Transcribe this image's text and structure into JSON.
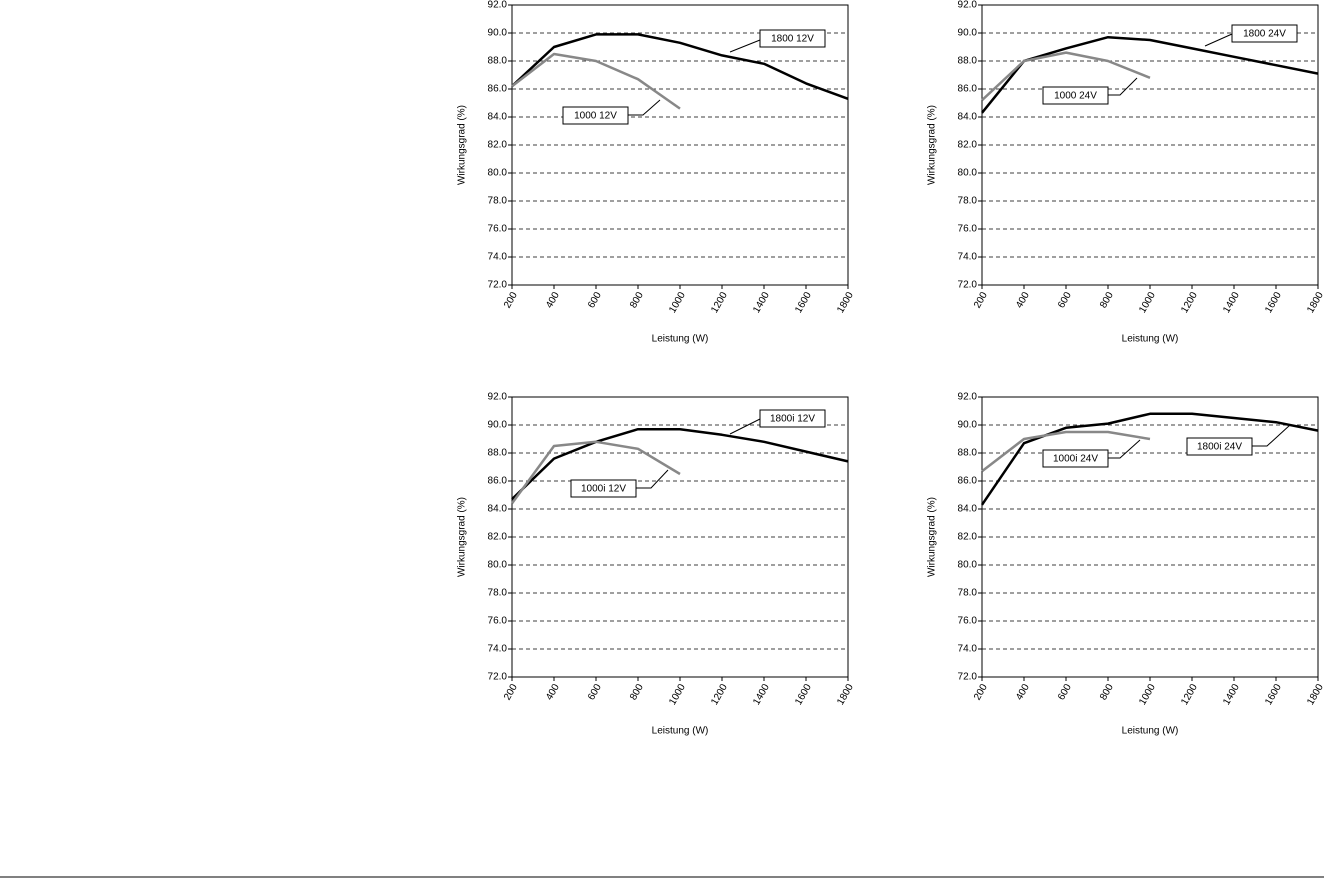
{
  "chart_data": [
    {
      "type": "line",
      "xlabel": "Leistung (W)",
      "ylabel": "Wirkungsgrad (%)",
      "xlim": [
        200,
        1800
      ],
      "ylim": [
        72,
        92
      ],
      "xticks": [
        200,
        400,
        600,
        800,
        1000,
        1200,
        1400,
        1600,
        1800
      ],
      "yticks": [
        {
          "value": 72,
          "label": "72.0"
        },
        {
          "value": 74,
          "label": "74.0"
        },
        {
          "value": 76,
          "label": "76.0"
        },
        {
          "value": 78,
          "label": "78.0"
        },
        {
          "value": 80,
          "label": "80.0"
        },
        {
          "value": 82,
          "label": "82.0"
        },
        {
          "value": 84,
          "label": "84.0"
        },
        {
          "value": 86,
          "label": "86.0"
        },
        {
          "value": 88,
          "label": "88.0"
        },
        {
          "value": 90,
          "label": "90.0"
        },
        {
          "value": 92,
          "label": "92.0"
        }
      ],
      "grid": true,
      "series": [
        {
          "name": "1800 12V",
          "color": "#000000",
          "x": [
            200,
            400,
            600,
            800,
            1000,
            1200,
            1400,
            1600,
            1800
          ],
          "values": [
            86.2,
            89.0,
            89.9,
            89.9,
            89.3,
            88.4,
            87.8,
            86.4,
            85.3
          ]
        },
        {
          "name": "1000 12V",
          "color": "#888888",
          "x": [
            200,
            400,
            600,
            800,
            1000
          ],
          "values": [
            86.2,
            88.5,
            88.0,
            86.7,
            84.6
          ]
        }
      ]
    },
    {
      "type": "line",
      "xlabel": "Leistung (W)",
      "ylabel": "Wirkungsgrad (%)",
      "xlim": [
        200,
        1800
      ],
      "ylim": [
        72,
        92
      ],
      "xticks": [
        200,
        400,
        600,
        800,
        1000,
        1200,
        1400,
        1600,
        1800
      ],
      "yticks": [
        {
          "value": 72,
          "label": "72.0"
        },
        {
          "value": 74,
          "label": "74.0"
        },
        {
          "value": 76,
          "label": "76.0"
        },
        {
          "value": 78,
          "label": "78.0"
        },
        {
          "value": 80,
          "label": "80.0"
        },
        {
          "value": 82,
          "label": "82.0"
        },
        {
          "value": 84,
          "label": "84.0"
        },
        {
          "value": 86,
          "label": "86.0"
        },
        {
          "value": 88,
          "label": "88.0"
        },
        {
          "value": 90,
          "label": "90.0"
        },
        {
          "value": 92,
          "label": "92.0"
        }
      ],
      "grid": true,
      "series": [
        {
          "name": "1800 24V",
          "color": "#000000",
          "x": [
            200,
            400,
            600,
            800,
            1000,
            1200,
            1400,
            1600,
            1800
          ],
          "values": [
            84.3,
            88.0,
            88.9,
            89.7,
            89.5,
            88.9,
            88.3,
            87.7,
            87.1
          ]
        },
        {
          "name": "1000 24V",
          "color": "#888888",
          "x": [
            200,
            400,
            600,
            800,
            1000
          ],
          "values": [
            85.2,
            88.0,
            88.6,
            88.0,
            86.8
          ]
        }
      ]
    },
    {
      "type": "line",
      "xlabel": "Leistung (W)",
      "ylabel": "Wirkungsgrad (%)",
      "xlim": [
        200,
        1800
      ],
      "ylim": [
        72,
        92
      ],
      "xticks": [
        200,
        400,
        600,
        800,
        1000,
        1200,
        1400,
        1600,
        1800
      ],
      "yticks": [
        {
          "value": 72,
          "label": "72.0"
        },
        {
          "value": 74,
          "label": "74.0"
        },
        {
          "value": 76,
          "label": "76.0"
        },
        {
          "value": 78,
          "label": "78.0"
        },
        {
          "value": 80,
          "label": "80.0"
        },
        {
          "value": 82,
          "label": "82.0"
        },
        {
          "value": 84,
          "label": "84.0"
        },
        {
          "value": 86,
          "label": "86.0"
        },
        {
          "value": 88,
          "label": "88.0"
        },
        {
          "value": 90,
          "label": "90.0"
        },
        {
          "value": 92,
          "label": "92.0"
        }
      ],
      "grid": true,
      "series": [
        {
          "name": "1800i 12V",
          "color": "#000000",
          "x": [
            200,
            400,
            600,
            800,
            1000,
            1200,
            1400,
            1600,
            1800
          ],
          "values": [
            84.7,
            87.6,
            88.8,
            89.7,
            89.7,
            89.3,
            88.8,
            88.1,
            87.4
          ]
        },
        {
          "name": "1000i 12V",
          "color": "#888888",
          "x": [
            200,
            400,
            600,
            800,
            1000
          ],
          "values": [
            84.4,
            88.5,
            88.8,
            88.3,
            86.5
          ]
        }
      ]
    },
    {
      "type": "line",
      "xlabel": "Leistung (W)",
      "ylabel": "Wirkungsgrad (%)",
      "xlim": [
        200,
        1800
      ],
      "ylim": [
        72,
        92
      ],
      "xticks": [
        200,
        400,
        600,
        800,
        1000,
        1200,
        1400,
        1600,
        1800
      ],
      "yticks": [
        {
          "value": 72,
          "label": "72.0"
        },
        {
          "value": 74,
          "label": "74.0"
        },
        {
          "value": 76,
          "label": "76.0"
        },
        {
          "value": 78,
          "label": "78.0"
        },
        {
          "value": 80,
          "label": "80.0"
        },
        {
          "value": 82,
          "label": "82.0"
        },
        {
          "value": 84,
          "label": "84.0"
        },
        {
          "value": 86,
          "label": "86.0"
        },
        {
          "value": 88,
          "label": "88.0"
        },
        {
          "value": 90,
          "label": "90.0"
        },
        {
          "value": 92,
          "label": "92.0"
        }
      ],
      "grid": true,
      "series": [
        {
          "name": "1800i 24V",
          "color": "#000000",
          "x": [
            200,
            400,
            600,
            800,
            1000,
            1200,
            1400,
            1600,
            1800
          ],
          "values": [
            84.3,
            88.7,
            89.8,
            90.1,
            90.8,
            90.8,
            90.5,
            90.2,
            89.6
          ]
        },
        {
          "name": "1000i 24V",
          "color": "#888888",
          "x": [
            200,
            400,
            600,
            800,
            1000
          ],
          "values": [
            86.7,
            89.0,
            89.5,
            89.5,
            89.0
          ]
        }
      ]
    }
  ]
}
